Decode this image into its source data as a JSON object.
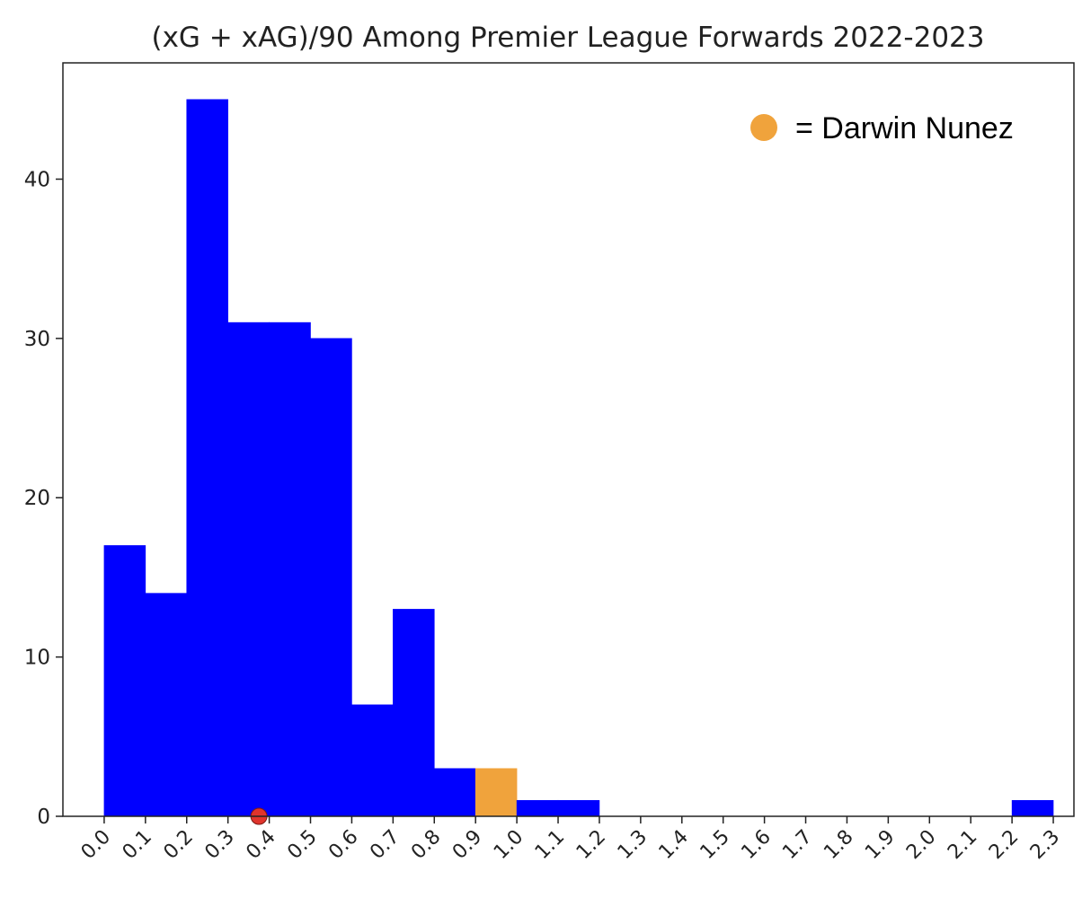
{
  "chart_data": {
    "type": "bar",
    "title": "(xG + xAG)/90 Among Premier League Forwards 2022-2023",
    "xlabel": "",
    "ylabel": "",
    "bin_edges": [
      0.0,
      0.1,
      0.2,
      0.3,
      0.4,
      0.5,
      0.6,
      0.7,
      0.8,
      0.9,
      1.0,
      1.1,
      1.2,
      1.3,
      1.4,
      1.5,
      1.6,
      1.7,
      1.8,
      1.9,
      2.0,
      2.1,
      2.2,
      2.3
    ],
    "values": [
      17,
      14,
      45,
      31,
      31,
      30,
      7,
      13,
      3,
      3,
      1,
      1,
      0,
      0,
      0,
      0,
      0,
      0,
      0,
      0,
      0,
      0,
      1
    ],
    "highlight_bin_index": 9,
    "xticks": [
      "0.0",
      "0.1",
      "0.2",
      "0.3",
      "0.4",
      "0.5",
      "0.6",
      "0.7",
      "0.8",
      "0.9",
      "1.0",
      "1.1",
      "1.2",
      "1.3",
      "1.4",
      "1.5",
      "1.6",
      "1.7",
      "1.8",
      "1.9",
      "2.0",
      "2.1",
      "2.2",
      "2.3"
    ],
    "yticks": [
      "0",
      "10",
      "20",
      "30",
      "40"
    ],
    "ylim": [
      0,
      47.3
    ],
    "xlim": [
      -0.1,
      2.35
    ],
    "marker": {
      "x": 0.375,
      "y": 0
    },
    "legend": {
      "label": "= Darwin Nunez",
      "position": "top-right"
    },
    "grid": false,
    "colors": {
      "bar": "#0000ff",
      "highlight": "#f0a33c",
      "marker": "#e0342c",
      "legend_marker": "#f0a33c",
      "axis": "#222222"
    }
  }
}
